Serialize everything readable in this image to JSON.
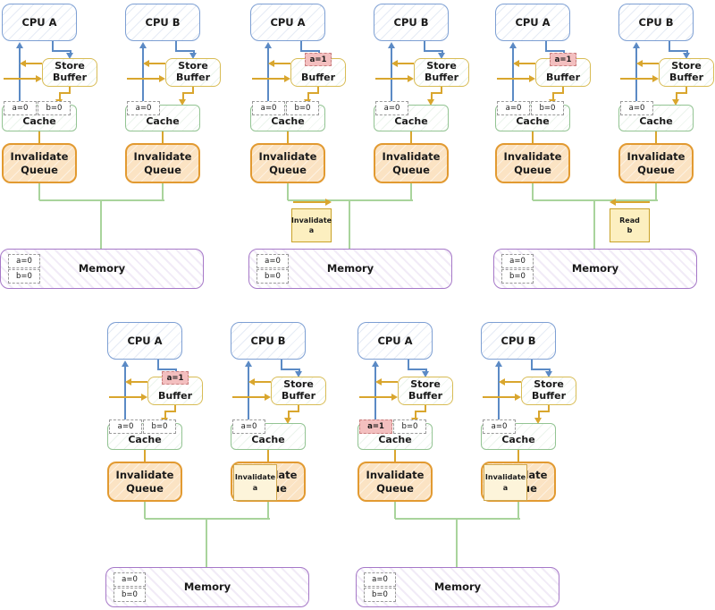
{
  "colors": {
    "cpu_border": "#7d9fd3",
    "arrow_blue": "#5b8ac5",
    "buffer_border": "#d8bc55",
    "cache_border": "#93c493",
    "queue_border": "#e29a31",
    "queue_fill": "#fbe3c3",
    "memory_border": "#a678c8",
    "bus_green": "#a9d49c",
    "arrow_gold": "#d9a62e",
    "highlight_fill": "#f3bfbf",
    "highlight_border": "#c97f7f",
    "message_fill": "#fcefc0",
    "message_border": "#c9a227"
  },
  "panels": [
    {
      "id": "step-1",
      "columns": [
        {
          "cpu_label": "CPU A",
          "buffer_cell": null,
          "buffer_lines": [
            "Store",
            "Buffer"
          ],
          "cache_label": "Cache",
          "cache_cells": [
            {
              "text": "a=0",
              "highlight": false
            },
            {
              "text": "b=0",
              "highlight": false
            }
          ],
          "queue_lines": [
            "Invalidate",
            "Queue"
          ],
          "queue_overlay": null
        },
        {
          "cpu_label": "CPU B",
          "buffer_cell": null,
          "buffer_lines": [
            "Store",
            "Buffer"
          ],
          "cache_label": "Cache",
          "cache_cells": [
            {
              "text": "a=0",
              "highlight": false
            }
          ],
          "queue_lines": [
            "Invalidate",
            "Queue"
          ],
          "queue_overlay": null
        }
      ],
      "memory": {
        "label": "Memory",
        "cells": [
          "a=0",
          "b=0"
        ]
      },
      "bus_message": null
    },
    {
      "id": "step-2",
      "columns": [
        {
          "cpu_label": "CPU A",
          "buffer_cell": {
            "text": "a=1",
            "highlight": true
          },
          "buffer_lines": [
            "Buffer"
          ],
          "cache_label": "Cache",
          "cache_cells": [
            {
              "text": "a=0",
              "highlight": false
            },
            {
              "text": "b=0",
              "highlight": false
            }
          ],
          "queue_lines": [
            "Invalidate",
            "Queue"
          ],
          "queue_overlay": null
        },
        {
          "cpu_label": "CPU B",
          "buffer_cell": null,
          "buffer_lines": [
            "Store",
            "Buffer"
          ],
          "cache_label": "Cache",
          "cache_cells": [
            {
              "text": "a=0",
              "highlight": false
            }
          ],
          "queue_lines": [
            "Invalidate",
            "Queue"
          ],
          "queue_overlay": null
        }
      ],
      "memory": {
        "label": "Memory",
        "cells": [
          "a=0",
          "b=0"
        ]
      },
      "bus_message": {
        "lines": [
          "Invalidate",
          "a"
        ],
        "arrow_direction": "right"
      }
    },
    {
      "id": "step-3",
      "columns": [
        {
          "cpu_label": "CPU A",
          "buffer_cell": {
            "text": "a=1",
            "highlight": true
          },
          "buffer_lines": [
            "Buffer"
          ],
          "cache_label": "Cache",
          "cache_cells": [
            {
              "text": "a=0",
              "highlight": false
            },
            {
              "text": "b=0",
              "highlight": false
            }
          ],
          "queue_lines": [
            "Invalidate",
            "Queue"
          ],
          "queue_overlay": null
        },
        {
          "cpu_label": "CPU B",
          "buffer_cell": null,
          "buffer_lines": [
            "Store",
            "Buffer"
          ],
          "cache_label": "Cache",
          "cache_cells": [
            {
              "text": "a=0",
              "highlight": false
            }
          ],
          "queue_lines": [
            "Invalidate",
            "Queue"
          ],
          "queue_overlay": null
        }
      ],
      "memory": {
        "label": "Memory",
        "cells": [
          "a=0",
          "b=0"
        ]
      },
      "bus_message": {
        "lines": [
          "Read",
          "b"
        ],
        "arrow_direction": "left"
      }
    },
    {
      "id": "step-4",
      "columns": [
        {
          "cpu_label": "CPU A",
          "buffer_cell": {
            "text": "a=1",
            "highlight": true
          },
          "buffer_lines": [
            "Buffer"
          ],
          "cache_label": "Cache",
          "cache_cells": [
            {
              "text": "a=0",
              "highlight": false
            },
            {
              "text": "b=0",
              "highlight": false
            }
          ],
          "queue_lines": [
            "Invalidate",
            "Queue"
          ],
          "queue_overlay": null
        },
        {
          "cpu_label": "CPU B",
          "buffer_cell": null,
          "buffer_lines": [
            "Store",
            "Buffer"
          ],
          "cache_label": "Cache",
          "cache_cells": [
            {
              "text": "a=0",
              "highlight": false
            }
          ],
          "queue_lines": [
            "Invalidate",
            "Queue"
          ],
          "queue_overlay": {
            "lines": [
              "Invalidate",
              "a"
            ]
          }
        }
      ],
      "memory": {
        "label": "Memory",
        "cells": [
          "a=0",
          "b=0"
        ]
      },
      "bus_message": null
    },
    {
      "id": "step-5",
      "columns": [
        {
          "cpu_label": "CPU A",
          "buffer_cell": null,
          "buffer_lines": [
            "Store",
            "Buffer"
          ],
          "cache_label": "Cache",
          "cache_cells": [
            {
              "text": "a=1",
              "highlight": true
            },
            {
              "text": "b=0",
              "highlight": false
            }
          ],
          "queue_lines": [
            "Invalidate",
            "Queue"
          ],
          "queue_overlay": null
        },
        {
          "cpu_label": "CPU B",
          "buffer_cell": null,
          "buffer_lines": [
            "Store",
            "Buffer"
          ],
          "cache_label": "Cache",
          "cache_cells": [
            {
              "text": "a=0",
              "highlight": false
            }
          ],
          "queue_lines": [
            "Invalidate",
            "Queue"
          ],
          "queue_overlay": {
            "lines": [
              "Invalidate",
              "a"
            ]
          }
        }
      ],
      "memory": {
        "label": "Memory",
        "cells": [
          "a=0",
          "b=0"
        ]
      },
      "bus_message": null
    }
  ]
}
